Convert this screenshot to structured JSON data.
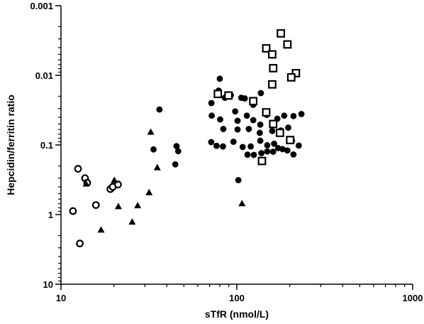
{
  "chart_data": {
    "type": "scatter",
    "title": "",
    "xlabel": "sTfR (nmol/L)",
    "ylabel": "Hepcidin/ferritin ratio",
    "x_scale": "log",
    "y_scale": "log",
    "y_reversed": true,
    "xlim": [
      10,
      1000
    ],
    "ylim": [
      0.001,
      10
    ],
    "x_ticks": [
      {
        "value": 10,
        "label": "10"
      },
      {
        "value": 100,
        "label": "100"
      },
      {
        "value": 1000,
        "label": "1000"
      }
    ],
    "y_ticks": [
      {
        "value": 0.001,
        "label": "0.001"
      },
      {
        "value": 0.01,
        "label": "0.01"
      },
      {
        "value": 0.1,
        "label": "0.1"
      },
      {
        "value": 1,
        "label": "1"
      },
      {
        "value": 10,
        "label": "10"
      }
    ],
    "grid": false,
    "legend": "none",
    "series": [
      {
        "marker": "open-circle",
        "points": [
          [
            12.5,
            0.22
          ],
          [
            13.7,
            0.3
          ],
          [
            14.1,
            0.35
          ],
          [
            11.7,
            0.89
          ],
          [
            15.8,
            0.73
          ],
          [
            12.8,
            2.6
          ],
          [
            19.1,
            0.43
          ],
          [
            19.7,
            0.4
          ],
          [
            21.1,
            0.37
          ]
        ]
      },
      {
        "marker": "filled-triangle",
        "points": [
          [
            20.1,
            0.32
          ],
          [
            13.9,
            0.36
          ],
          [
            21.2,
            0.76
          ],
          [
            16.9,
            1.65
          ],
          [
            25.4,
            1.27
          ],
          [
            27.3,
            0.74
          ],
          [
            31.7,
            0.48
          ],
          [
            32.4,
            0.065
          ],
          [
            35.3,
            0.21
          ],
          [
            107,
            0.69
          ]
        ]
      },
      {
        "marker": "filled-circle",
        "points": [
          [
            36.3,
            0.031
          ],
          [
            33.6,
            0.116
          ],
          [
            45.4,
            0.104
          ],
          [
            46.4,
            0.123
          ],
          [
            44.7,
            0.19
          ],
          [
            80.0,
            0.0112
          ],
          [
            78.8,
            0.0166
          ],
          [
            71.7,
            0.025
          ],
          [
            85.5,
            0.021
          ],
          [
            92.5,
            0.0193
          ],
          [
            106,
            0.021
          ],
          [
            111,
            0.0215
          ],
          [
            124,
            0.0265
          ],
          [
            137,
            0.018
          ],
          [
            72.0,
            0.038
          ],
          [
            80.4,
            0.043
          ],
          [
            97.9,
            0.033
          ],
          [
            101,
            0.045
          ],
          [
            114,
            0.038
          ],
          [
            124,
            0.044
          ],
          [
            136,
            0.051
          ],
          [
            148,
            0.037
          ],
          [
            170,
            0.042
          ],
          [
            186,
            0.038
          ],
          [
            210,
            0.0385
          ],
          [
            233,
            0.036
          ],
          [
            83.8,
            0.059
          ],
          [
            101,
            0.06
          ],
          [
            117,
            0.059
          ],
          [
            135,
            0.067
          ],
          [
            159,
            0.063
          ],
          [
            178,
            0.062
          ],
          [
            196,
            0.0565
          ],
          [
            71.5,
            0.091
          ],
          [
            76.7,
            0.103
          ],
          [
            83.4,
            0.105
          ],
          [
            95.7,
            0.09
          ],
          [
            108,
            0.107
          ],
          [
            120,
            0.105
          ],
          [
            136,
            0.087
          ],
          [
            149,
            0.101
          ],
          [
            163,
            0.096
          ],
          [
            182,
            0.115
          ],
          [
            206,
            0.087
          ],
          [
            225,
            0.102
          ],
          [
            115,
            0.138
          ],
          [
            125,
            0.139
          ],
          [
            138,
            0.131
          ],
          [
            149,
            0.124
          ],
          [
            161,
            0.125
          ],
          [
            172,
            0.111
          ],
          [
            194,
            0.12
          ],
          [
            210,
            0.137
          ],
          [
            102,
            0.32
          ]
        ]
      },
      {
        "marker": "open-square",
        "points": [
          [
            178,
            0.0025
          ],
          [
            194,
            0.0036
          ],
          [
            147,
            0.0041
          ],
          [
            159,
            0.005
          ],
          [
            161,
            0.0079
          ],
          [
            217,
            0.0093
          ],
          [
            204,
            0.0107
          ],
          [
            159,
            0.0135
          ],
          [
            78.0,
            0.0185
          ],
          [
            89.6,
            0.0195
          ],
          [
            124,
            0.0235
          ],
          [
            147,
            0.034
          ],
          [
            161,
            0.05
          ],
          [
            176,
            0.067
          ],
          [
            201,
            0.085
          ],
          [
            139,
            0.17
          ]
        ]
      }
    ]
  }
}
